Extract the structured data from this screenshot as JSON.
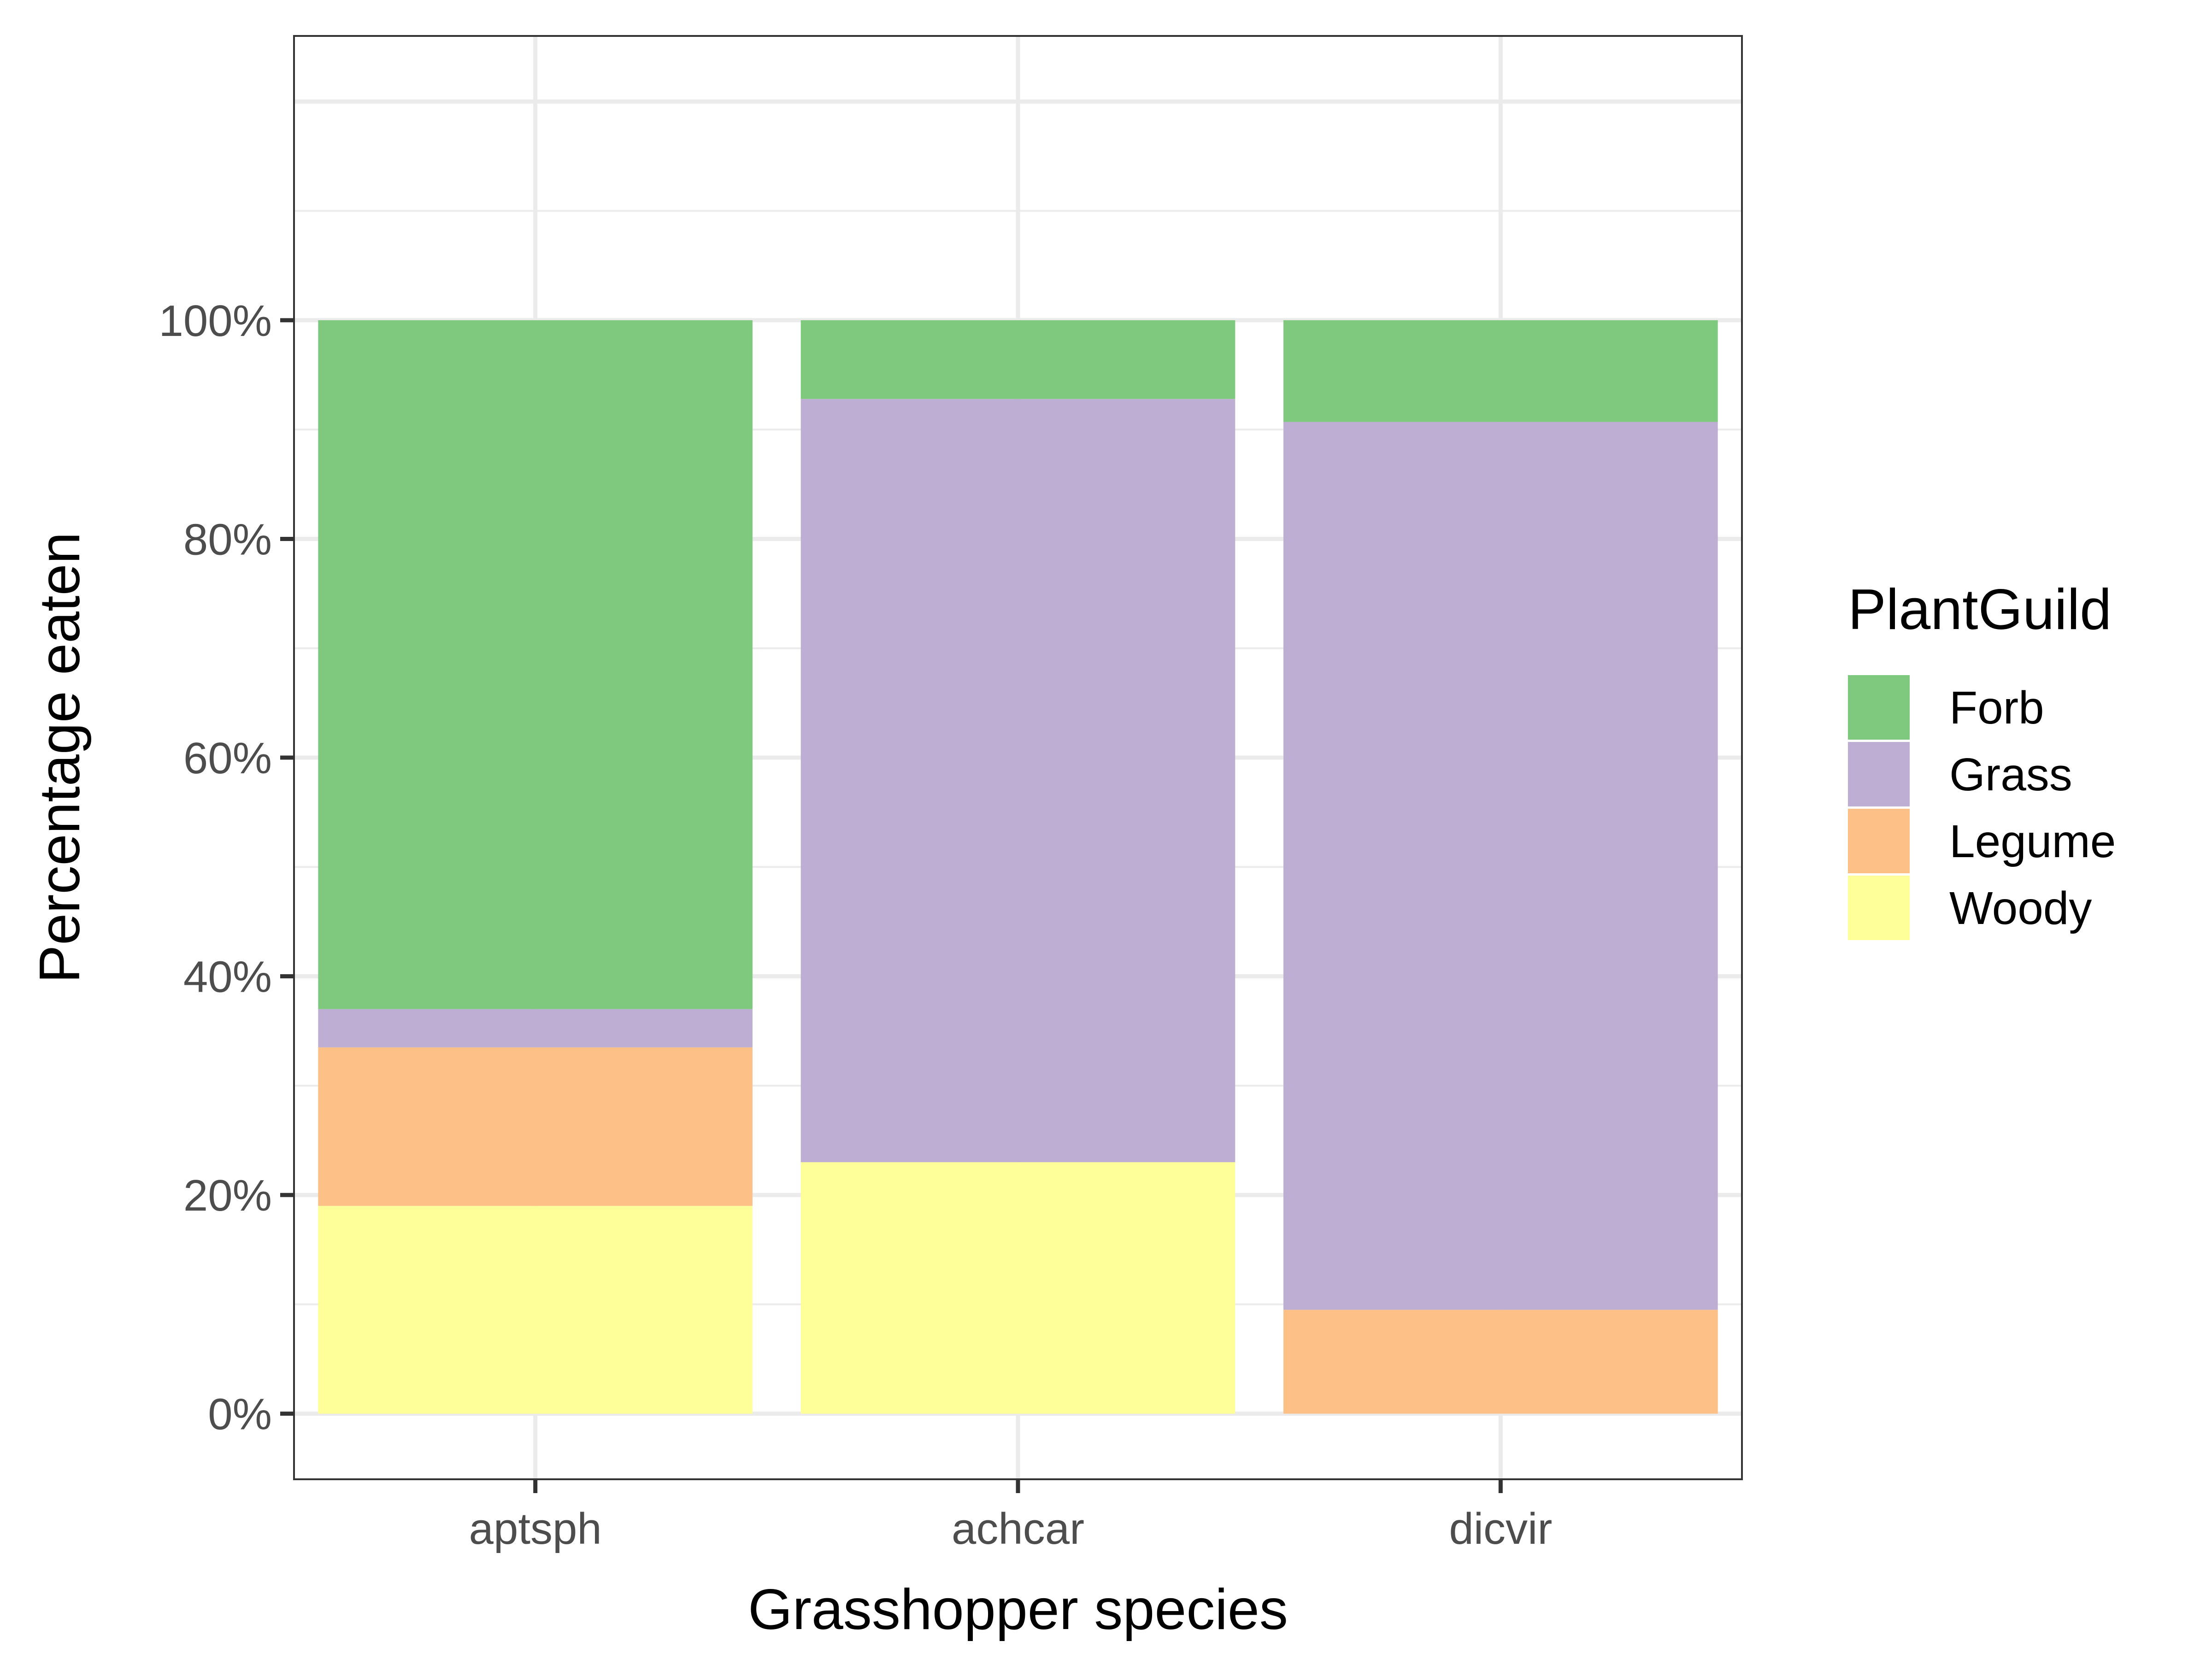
{
  "chart_data": {
    "type": "bar",
    "stacked": true,
    "categories": [
      "aptsph",
      "achcar",
      "dicvir"
    ],
    "series": [
      {
        "name": "Woody",
        "color": "#FFFF99",
        "values": [
          19.0,
          23.0,
          0.0
        ]
      },
      {
        "name": "Legume",
        "color": "#FDC086",
        "values": [
          14.5,
          0.0,
          9.5
        ]
      },
      {
        "name": "Grass",
        "color": "#BEAED4",
        "values": [
          3.5,
          69.8,
          81.2
        ]
      },
      {
        "name": "Forb",
        "color": "#7FC97F",
        "values": [
          63.0,
          7.2,
          9.3
        ]
      }
    ],
    "xlabel": "Grasshopper species",
    "ylabel": "Percentage eaten",
    "yticks": [
      "0%",
      "20%",
      "40%",
      "60%",
      "80%",
      "100%"
    ],
    "ylim": [
      -6,
      126
    ],
    "grid": true,
    "legend": {
      "title": "PlantGuild",
      "position": "right",
      "entries": [
        "Forb",
        "Grass",
        "Legume",
        "Woody"
      ]
    }
  }
}
